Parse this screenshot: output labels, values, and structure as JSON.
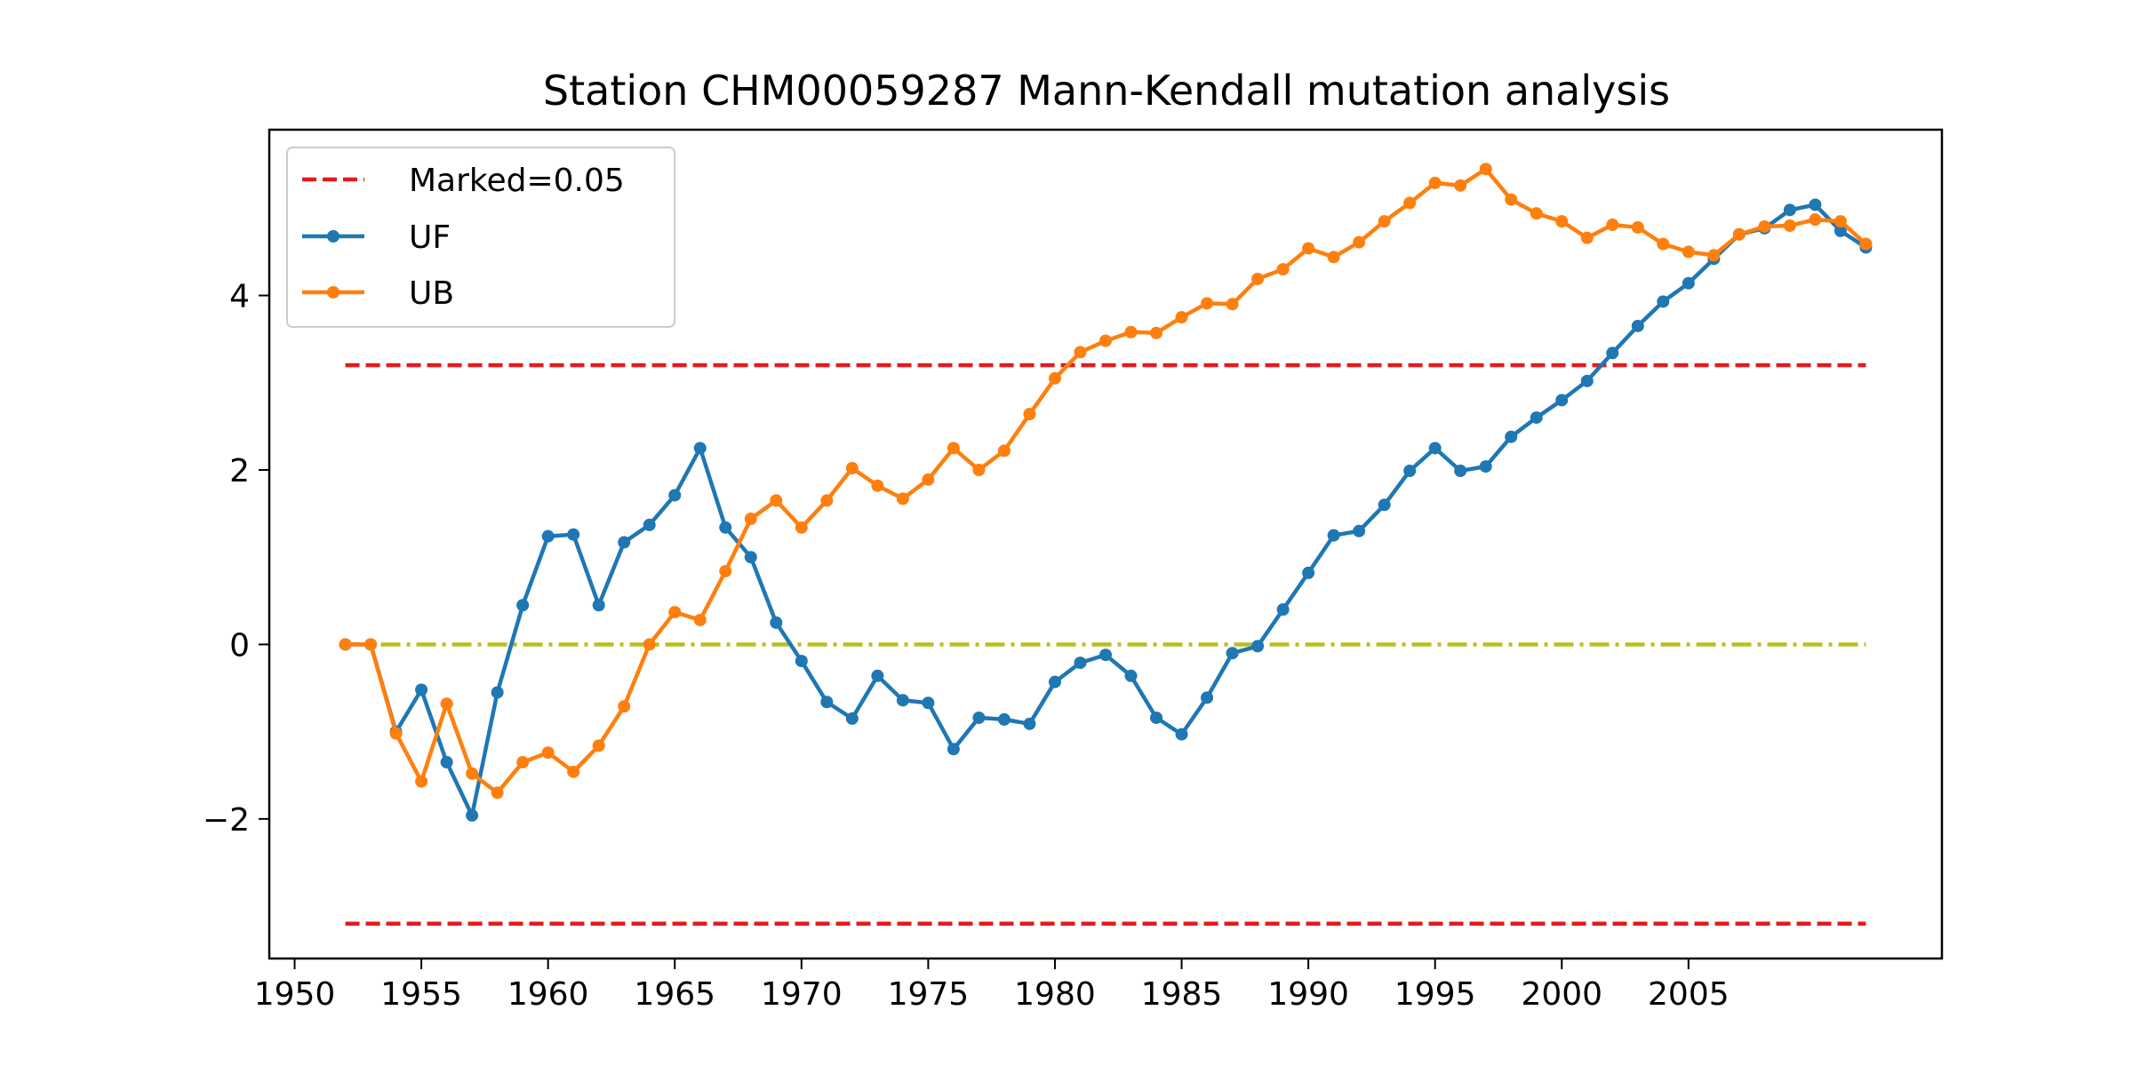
{
  "chart_data": {
    "type": "line",
    "title": "Station CHM00059287 Mann-Kendall mutation analysis",
    "xlabel": "",
    "ylabel": "",
    "xlim": [
      1949,
      2015
    ],
    "ylim": [
      -3.6,
      5.9
    ],
    "x_ticks": [
      1950,
      1955,
      1960,
      1965,
      1970,
      1975,
      1980,
      1985,
      1990,
      1995,
      2000,
      2005
    ],
    "x_tick_labels": [
      "1950",
      "1955",
      "1960",
      "1965",
      "1970",
      "1975",
      "1980",
      "1985",
      "1990",
      "1995",
      "2000",
      "2005"
    ],
    "y_ticks": [
      -2,
      0,
      2,
      4
    ],
    "y_tick_labels": [
      "−2",
      "0",
      "2",
      "4"
    ],
    "legend_position": "upper-left",
    "grid": false,
    "x": [
      1952,
      1953,
      1954,
      1955,
      1956,
      1957,
      1958,
      1959,
      1960,
      1961,
      1962,
      1963,
      1964,
      1965,
      1966,
      1967,
      1968,
      1969,
      1970,
      1971,
      1972,
      1973,
      1974,
      1975,
      1976,
      1977,
      1978,
      1979,
      1980,
      1981,
      1982,
      1983,
      1984,
      1985,
      1986,
      1987,
      1988,
      1989,
      1990,
      1991,
      1992,
      1993,
      1994,
      1995,
      1996,
      1997,
      1998,
      1999,
      2000,
      2001,
      2002,
      2003,
      2004,
      2005,
      2006,
      2007,
      2008,
      2009,
      2010,
      2011,
      2012
    ],
    "series": [
      {
        "name": "UF",
        "color": "#1f77b4",
        "values": [
          0,
          0,
          -1.0,
          -0.52,
          -1.35,
          -1.96,
          -0.55,
          0.45,
          1.24,
          1.26,
          0.45,
          1.17,
          1.37,
          1.71,
          2.25,
          1.34,
          1.0,
          0.25,
          -0.19,
          -0.66,
          -0.85,
          -0.36,
          -0.64,
          -0.67,
          -1.2,
          -0.84,
          -0.86,
          -0.91,
          -0.43,
          -0.21,
          -0.12,
          -0.36,
          -0.84,
          -1.03,
          -0.61,
          -0.1,
          -0.02,
          0.4,
          0.82,
          1.25,
          1.3,
          1.6,
          1.99,
          2.25,
          1.99,
          2.04,
          2.38,
          2.6,
          2.8,
          3.02,
          3.34,
          3.65,
          3.93,
          4.14,
          4.42,
          4.7,
          4.77,
          4.98,
          5.04,
          4.74,
          4.55
        ]
      },
      {
        "name": "UB",
        "color": "#ff7f0e",
        "values": [
          0,
          0,
          -1.02,
          -1.57,
          -0.68,
          -1.48,
          -1.7,
          -1.35,
          -1.24,
          -1.46,
          -1.16,
          -0.71,
          0.0,
          0.37,
          0.28,
          0.84,
          1.44,
          1.65,
          1.34,
          1.65,
          2.02,
          1.82,
          1.67,
          1.89,
          2.25,
          2.0,
          2.22,
          2.64,
          3.05,
          3.35,
          3.48,
          3.58,
          3.57,
          3.75,
          3.91,
          3.9,
          4.19,
          4.3,
          4.54,
          4.44,
          4.61,
          4.85,
          5.06,
          5.29,
          5.26,
          5.45,
          5.1,
          4.94,
          4.85,
          4.66,
          4.81,
          4.78,
          4.59,
          4.5,
          4.46,
          4.7,
          4.79,
          4.8,
          4.87,
          4.85,
          4.59
        ]
      }
    ],
    "reference_lines": [
      {
        "name": "Marked=0.05",
        "color": "#e41a1c",
        "style": "dashed",
        "y": 3.2
      },
      {
        "name": "",
        "color": "#e41a1c",
        "style": "dashed",
        "y": -3.2
      },
      {
        "name": "",
        "color": "#bcbd22",
        "style": "dashdot",
        "y": 0
      }
    ],
    "reference_span": [
      1952,
      2012
    ],
    "legend": [
      "Marked=0.05",
      "UF",
      "UB"
    ]
  }
}
